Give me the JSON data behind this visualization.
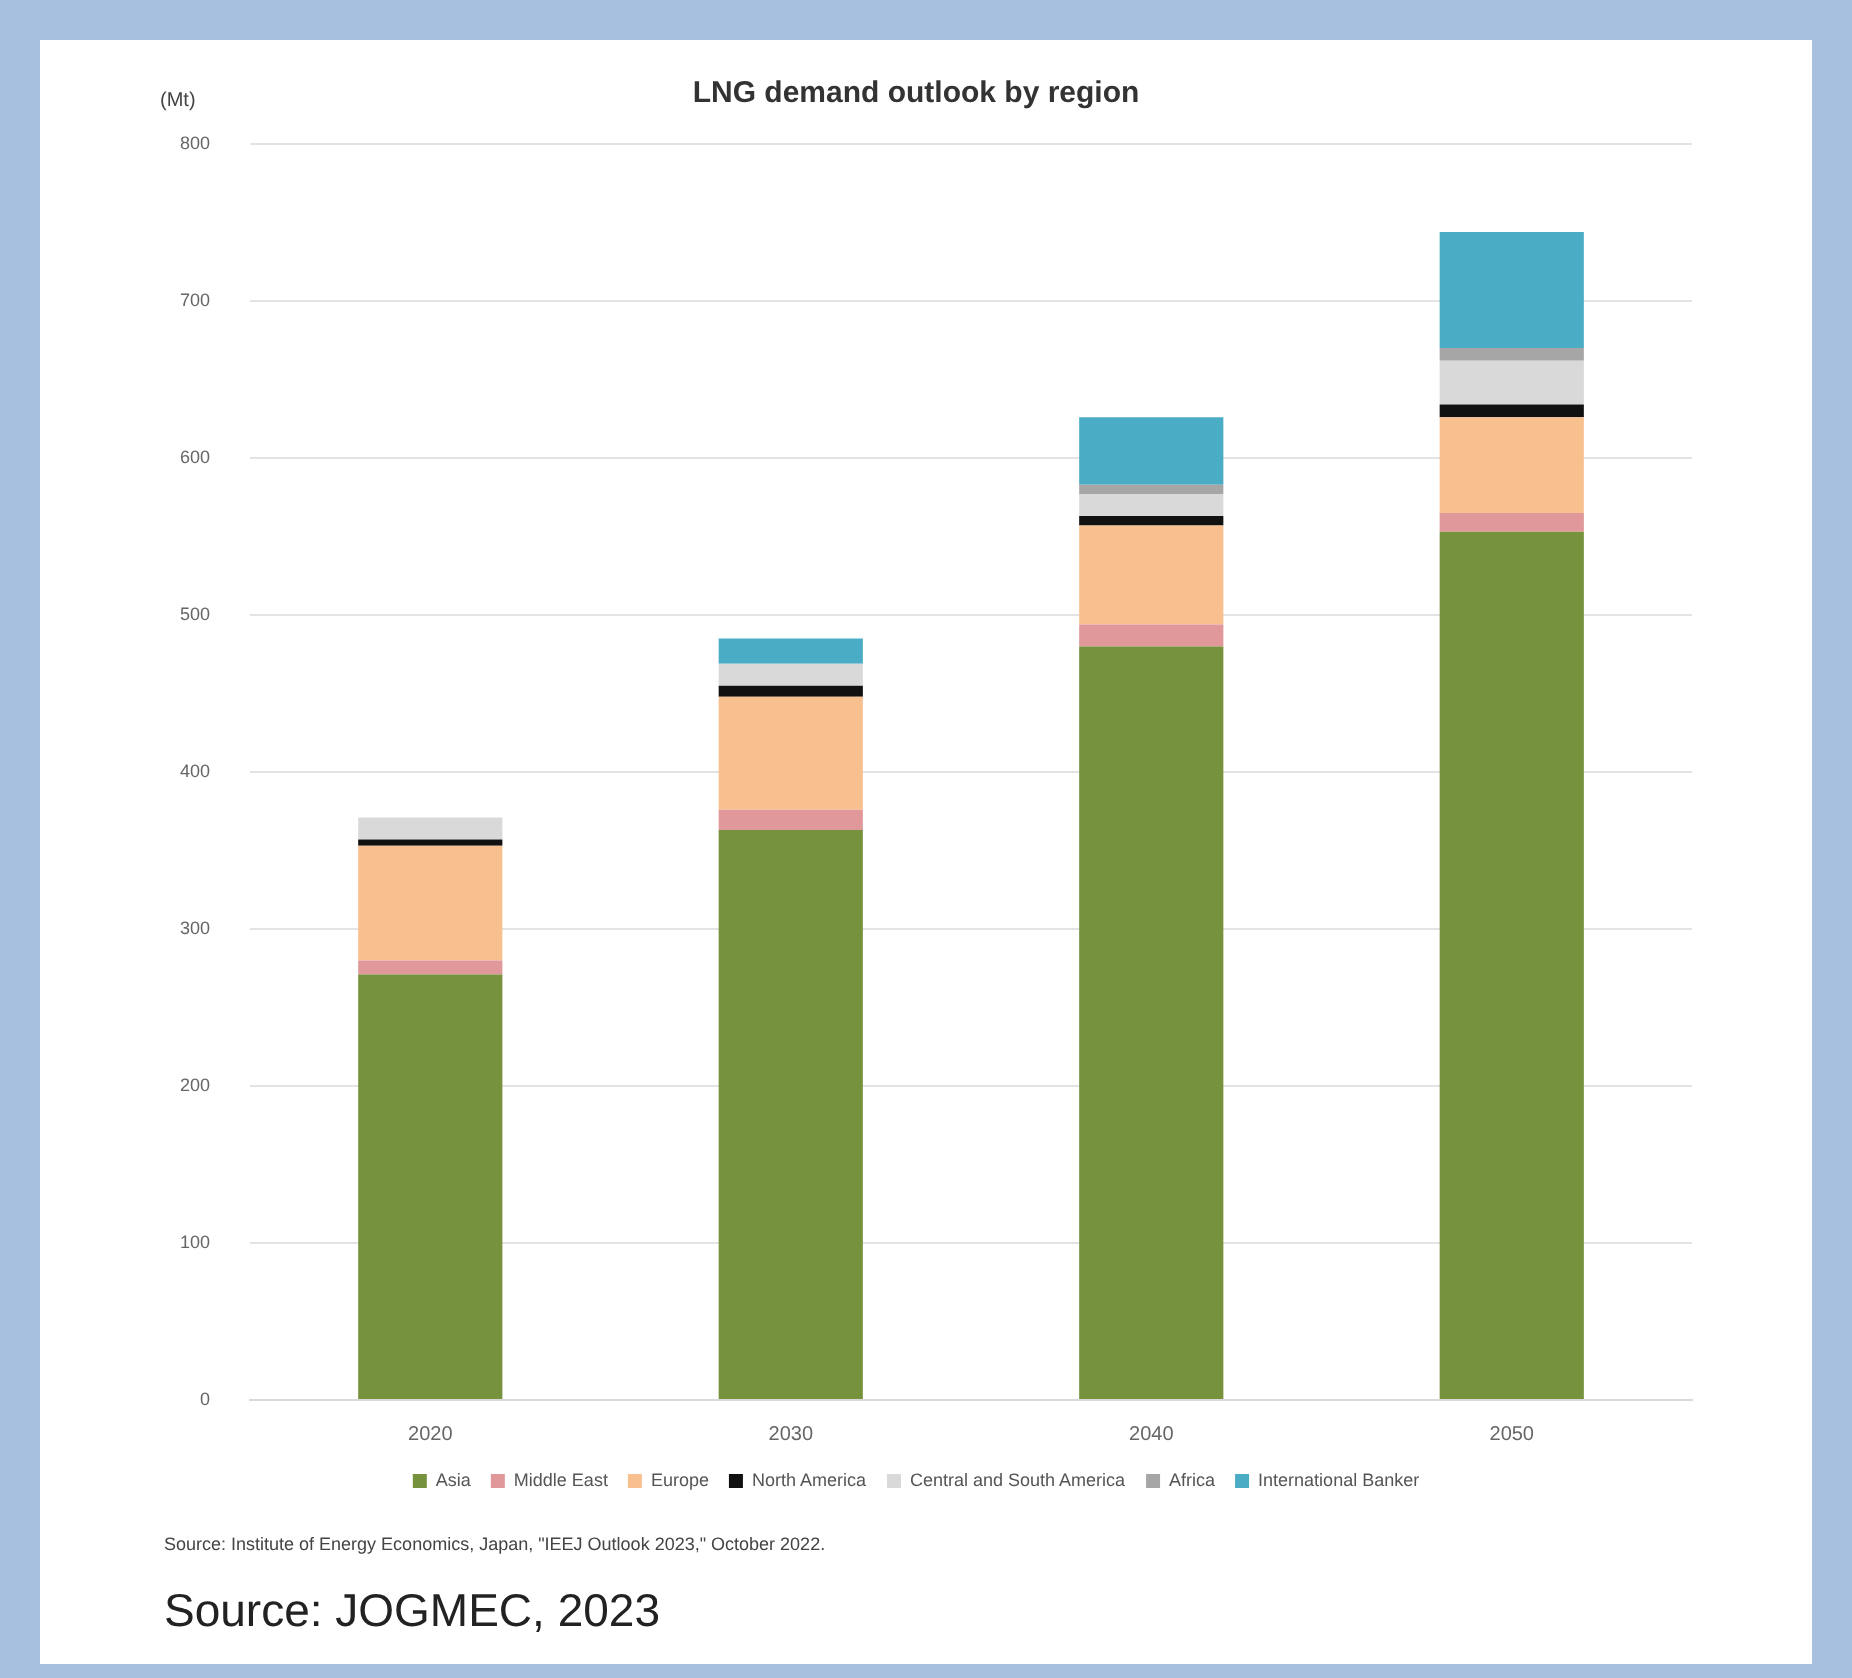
{
  "chart_data": {
    "type": "bar",
    "title": "LNG demand outlook by region",
    "ylabel": "(Mt)",
    "categories": [
      "2020",
      "2030",
      "2040",
      "2050"
    ],
    "stacked": true,
    "series": [
      {
        "name": "Asia",
        "color": "#77923c",
        "values": [
          271,
          363,
          480,
          553
        ]
      },
      {
        "name": "Middle East",
        "color": "#e0989a",
        "values": [
          9,
          13,
          14,
          12
        ]
      },
      {
        "name": "Europe",
        "color": "#f9c08f",
        "values": [
          73,
          72,
          63,
          61
        ]
      },
      {
        "name": "North America",
        "color": "#111111",
        "values": [
          4,
          7,
          6,
          8
        ]
      },
      {
        "name": "Central and South America",
        "color": "#d9d9d9",
        "values": [
          14,
          14,
          14,
          28
        ]
      },
      {
        "name": "Africa",
        "color": "#a6a6a6",
        "values": [
          0,
          null,
          6,
          8
        ]
      },
      {
        "name": "International Banker",
        "color": "#4bacc6",
        "values": [
          0,
          16,
          43,
          74
        ]
      }
    ],
    "ylim": [
      0,
      800
    ],
    "yticks": [
      0,
      100,
      200,
      300,
      400,
      500,
      600,
      700,
      800
    ],
    "grid": "y",
    "legend": "bottom",
    "annotations": [
      "Source: Institute of Energy Economics, Japan, \"IEEJ Outlook 2023,\" October 2022.",
      "Source:  JOGMEC, 2023"
    ]
  }
}
